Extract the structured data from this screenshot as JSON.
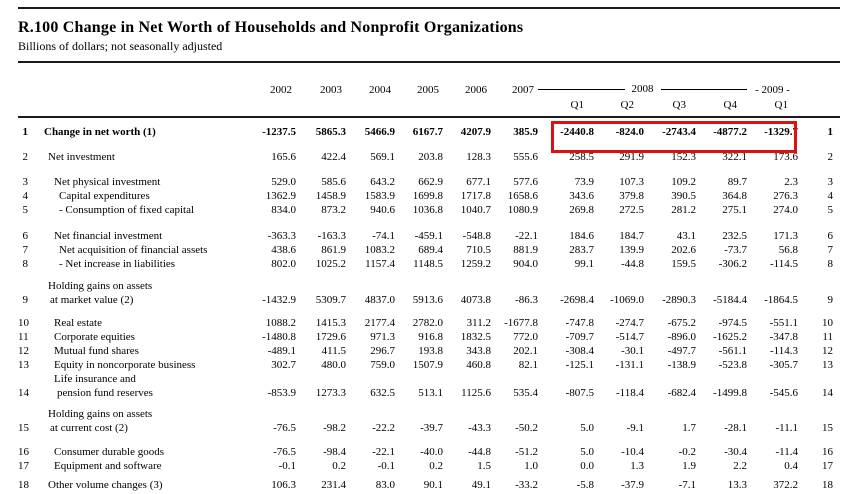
{
  "title": "R.100 Change in Net Worth of Households and Nonprofit Organizations",
  "subtitle": "Billions of dollars; not seasonally adjusted",
  "header": {
    "years": [
      "2002",
      "2003",
      "2004",
      "2005",
      "2006",
      "2007"
    ],
    "group_2008": "2008",
    "group_2009": "- 2009 -",
    "quarters_2008": [
      "Q1",
      "Q2",
      "Q3",
      "Q4"
    ],
    "quarter_2009": "Q1"
  },
  "highlight": {
    "color": "#dd1111",
    "note": "red box around row 1 quarterly values"
  },
  "rows": [
    {
      "type": "spacer",
      "h": 7
    },
    {
      "type": "data",
      "line": "1",
      "label": "Change in net worth (1)",
      "indent": 0,
      "bold": true,
      "values": [
        "-1237.5",
        "5865.3",
        "5466.9",
        "6167.7",
        "4207.9",
        "385.9",
        "-2440.8",
        "-824.0",
        "-2743.4",
        "-4877.2",
        "-1329.7"
      ]
    },
    {
      "type": "spacer",
      "h": 11
    },
    {
      "type": "data",
      "line": "2",
      "label": "Net investment",
      "indent": 1,
      "values": [
        "165.6",
        "422.4",
        "569.1",
        "203.8",
        "128.3",
        "555.6",
        "258.5",
        "291.9",
        "152.3",
        "322.1",
        "173.6"
      ]
    },
    {
      "type": "spacer",
      "h": 11
    },
    {
      "type": "data",
      "line": "3",
      "label": "Net physical investment",
      "indent": 2,
      "values": [
        "529.0",
        "585.6",
        "643.2",
        "662.9",
        "677.1",
        "577.6",
        "73.9",
        "107.3",
        "109.2",
        "89.7",
        "2.3"
      ]
    },
    {
      "type": "data",
      "line": "4",
      "label": "Capital expenditures",
      "indent": 3,
      "values": [
        "1362.9",
        "1458.9",
        "1583.9",
        "1699.8",
        "1717.8",
        "1658.6",
        "343.6",
        "379.8",
        "390.5",
        "364.8",
        "276.3"
      ]
    },
    {
      "type": "data",
      "line": "5",
      "label": "- Consumption of fixed capital",
      "indent": 3,
      "values": [
        "834.0",
        "873.2",
        "940.6",
        "1036.8",
        "1040.7",
        "1080.9",
        "269.8",
        "272.5",
        "281.2",
        "275.1",
        "274.0"
      ]
    },
    {
      "type": "spacer",
      "h": 12
    },
    {
      "type": "data",
      "line": "6",
      "label": "Net financial investment",
      "indent": 2,
      "values": [
        "-363.3",
        "-163.3",
        "-74.1",
        "-459.1",
        "-548.8",
        "-22.1",
        "184.6",
        "184.7",
        "43.1",
        "232.5",
        "171.3"
      ]
    },
    {
      "type": "data",
      "line": "7",
      "label": "Net acquisition of financial assets",
      "indent": 3,
      "values": [
        "438.6",
        "861.9",
        "1083.2",
        "689.4",
        "710.5",
        "881.9",
        "283.7",
        "139.9",
        "202.6",
        "-73.7",
        "56.8"
      ]
    },
    {
      "type": "data",
      "line": "8",
      "label": "- Net increase in liabilities",
      "indent": 3,
      "values": [
        "802.0",
        "1025.2",
        "1157.4",
        "1148.5",
        "1259.2",
        "904.0",
        "99.1",
        "-44.8",
        "159.5",
        "-306.2",
        "-114.5"
      ]
    },
    {
      "type": "spacer",
      "h": 8
    },
    {
      "type": "subhead",
      "label": "Holding gains on assets",
      "indent": 1
    },
    {
      "type": "data",
      "line": "9",
      "label": "at market value (2)",
      "indent": 1.5,
      "values": [
        "-1432.9",
        "5309.7",
        "4837.0",
        "5913.6",
        "4073.8",
        "-86.3",
        "-2698.4",
        "-1069.0",
        "-2890.3",
        "-5184.4",
        "-1864.5"
      ]
    },
    {
      "type": "spacer",
      "h": 9
    },
    {
      "type": "data",
      "line": "10",
      "label": "Real estate",
      "indent": 2,
      "values": [
        "1088.2",
        "1415.3",
        "2177.4",
        "2782.0",
        "311.2",
        "-1677.8",
        "-747.8",
        "-274.7",
        "-675.2",
        "-974.5",
        "-551.1"
      ]
    },
    {
      "type": "data",
      "line": "11",
      "label": "Corporate equities",
      "indent": 2,
      "values": [
        "-1480.8",
        "1729.6",
        "971.3",
        "916.8",
        "1832.5",
        "772.0",
        "-709.7",
        "-514.7",
        "-896.0",
        "-1625.2",
        "-347.8"
      ]
    },
    {
      "type": "data",
      "line": "12",
      "label": "Mutual fund shares",
      "indent": 2,
      "values": [
        "-489.1",
        "411.5",
        "296.7",
        "193.8",
        "343.8",
        "202.1",
        "-308.4",
        "-30.1",
        "-497.7",
        "-561.1",
        "-114.3"
      ]
    },
    {
      "type": "data",
      "line": "13",
      "label": "Equity in noncorporate business",
      "indent": 2,
      "values": [
        "302.7",
        "480.0",
        "759.0",
        "1507.9",
        "460.8",
        "82.1",
        "-125.1",
        "-131.1",
        "-138.9",
        "-523.8",
        "-305.7"
      ]
    },
    {
      "type": "subhead",
      "label": "Life insurance and",
      "indent": 2
    },
    {
      "type": "data",
      "line": "14",
      "label": "pension fund reserves",
      "indent": 2.5,
      "values": [
        "-853.9",
        "1273.3",
        "632.5",
        "513.1",
        "1125.6",
        "535.4",
        "-807.5",
        "-118.4",
        "-682.4",
        "-1499.8",
        "-545.6"
      ]
    },
    {
      "type": "spacer",
      "h": 7
    },
    {
      "type": "subhead",
      "label": "Holding gains on assets",
      "indent": 1
    },
    {
      "type": "data",
      "line": "15",
      "label": "at current cost (2)",
      "indent": 1.5,
      "values": [
        "-76.5",
        "-98.2",
        "-22.2",
        "-39.7",
        "-43.3",
        "-50.2",
        "5.0",
        "-9.1",
        "1.7",
        "-28.1",
        "-11.1"
      ]
    },
    {
      "type": "spacer",
      "h": 10
    },
    {
      "type": "data",
      "line": "16",
      "label": "Consumer durable goods",
      "indent": 2,
      "values": [
        "-76.5",
        "-98.4",
        "-22.1",
        "-40.0",
        "-44.8",
        "-51.2",
        "5.0",
        "-10.4",
        "-0.2",
        "-30.4",
        "-11.4"
      ]
    },
    {
      "type": "data",
      "line": "17",
      "label": "Equipment and software",
      "indent": 2,
      "values": [
        "-0.1",
        "0.2",
        "-0.1",
        "0.2",
        "1.5",
        "1.0",
        "0.0",
        "1.3",
        "1.9",
        "2.2",
        "0.4"
      ]
    },
    {
      "type": "spacer",
      "h": 5
    },
    {
      "type": "data",
      "line": "18",
      "label": "Other volume changes (3)",
      "indent": 1,
      "values": [
        "106.3",
        "231.4",
        "83.0",
        "90.1",
        "49.1",
        "-33.2",
        "-5.8",
        "-37.9",
        "-7.1",
        "13.3",
        "372.2"
      ]
    }
  ]
}
